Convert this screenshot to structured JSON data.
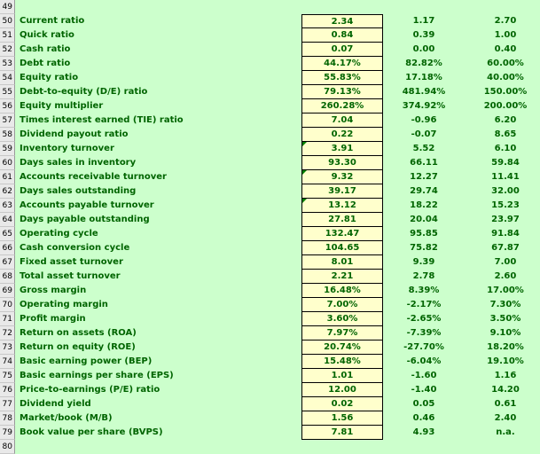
{
  "header_row": "49",
  "footer_row": "80",
  "rows": [
    {
      "num": "50",
      "label": "Current ratio",
      "v1": "2.34",
      "v2": "1.17",
      "v3": "2.70"
    },
    {
      "num": "51",
      "label": "Quick ratio",
      "v1": "0.84",
      "v2": "0.39",
      "v3": "1.00"
    },
    {
      "num": "52",
      "label": "Cash ratio",
      "v1": "0.07",
      "v2": "0.00",
      "v3": "0.40"
    },
    {
      "num": "53",
      "label": "Debt ratio",
      "v1": "44.17%",
      "v2": "82.82%",
      "v3": "60.00%"
    },
    {
      "num": "54",
      "label": "Equity ratio",
      "v1": "55.83%",
      "v2": "17.18%",
      "v3": "40.00%"
    },
    {
      "num": "55",
      "label": "Debt-to-equity (D/E) ratio",
      "v1": "79.13%",
      "v2": "481.94%",
      "v3": "150.00%"
    },
    {
      "num": "56",
      "label": "Equity multiplier",
      "v1": "260.28%",
      "v2": "374.92%",
      "v3": "200.00%"
    },
    {
      "num": "57",
      "label": "Times interest earned (TIE) ratio",
      "v1": "7.04",
      "v2": "-0.96",
      "v3": "6.20"
    },
    {
      "num": "58",
      "label": "Dividend payout ratio",
      "v1": "0.22",
      "v2": "-0.07",
      "v3": "8.65"
    },
    {
      "num": "59",
      "label": "Inventory turnover",
      "v1": "3.91",
      "v2": "5.52",
      "v3": "6.10"
    },
    {
      "num": "60",
      "label": "Days sales in inventory",
      "v1": "93.30",
      "v2": "66.11",
      "v3": "59.84"
    },
    {
      "num": "61",
      "label": "Accounts receivable turnover",
      "v1": "9.32",
      "v2": "12.27",
      "v3": "11.41"
    },
    {
      "num": "62",
      "label": "Days sales outstanding",
      "v1": "39.17",
      "v2": "29.74",
      "v3": "32.00"
    },
    {
      "num": "63",
      "label": "Accounts payable turnover",
      "v1": "13.12",
      "v2": "18.22",
      "v3": "15.23"
    },
    {
      "num": "64",
      "label": "Days payable outstanding",
      "v1": "27.81",
      "v2": "20.04",
      "v3": "23.97"
    },
    {
      "num": "65",
      "label": "Operating cycle",
      "v1": "132.47",
      "v2": "95.85",
      "v3": "91.84"
    },
    {
      "num": "66",
      "label": "Cash conversion cycle",
      "v1": "104.65",
      "v2": "75.82",
      "v3": "67.87"
    },
    {
      "num": "67",
      "label": "Fixed asset turnover",
      "v1": "8.01",
      "v2": "9.39",
      "v3": "7.00"
    },
    {
      "num": "68",
      "label": "Total asset turnover",
      "v1": "2.21",
      "v2": "2.78",
      "v3": "2.60"
    },
    {
      "num": "69",
      "label": "Gross margin",
      "v1": "16.48%",
      "v2": "8.39%",
      "v3": "17.00%"
    },
    {
      "num": "70",
      "label": "Operating margin",
      "v1": "7.00%",
      "v2": "-2.17%",
      "v3": "7.30%"
    },
    {
      "num": "71",
      "label": "Profit margin",
      "v1": "3.60%",
      "v2": "-2.65%",
      "v3": "3.50%"
    },
    {
      "num": "72",
      "label": "Return on assets (ROA)",
      "v1": "7.97%",
      "v2": "-7.39%",
      "v3": "9.10%"
    },
    {
      "num": "73",
      "label": "Return on equity (ROE)",
      "v1": "20.74%",
      "v2": "-27.70%",
      "v3": "18.20%"
    },
    {
      "num": "74",
      "label": "Basic earning power (BEP)",
      "v1": "15.48%",
      "v2": "-6.04%",
      "v3": "19.10%"
    },
    {
      "num": "75",
      "label": "Basic earnings per share (EPS)",
      "v1": "1.01",
      "v2": "-1.60",
      "v3": "1.16"
    },
    {
      "num": "76",
      "label": "Price-to-earnings (P/E) ratio",
      "v1": "12.00",
      "v2": "-1.40",
      "v3": "14.20"
    },
    {
      "num": "77",
      "label": "Dividend yield",
      "v1": "0.02",
      "v2": "0.05",
      "v3": "0.61"
    },
    {
      "num": "78",
      "label": "Market/book (M/B)",
      "v1": "1.56",
      "v2": "0.46",
      "v3": "2.40"
    },
    {
      "num": "79",
      "label": "Book value per share (BVPS)",
      "v1": "7.81",
      "v2": "4.93",
      "v3": "n.a."
    }
  ],
  "comment_markers": [
    "59",
    "61",
    "63"
  ],
  "colors": {
    "text": "#006400",
    "background": "#ccffcc",
    "input_cell": "#ffffcc"
  }
}
